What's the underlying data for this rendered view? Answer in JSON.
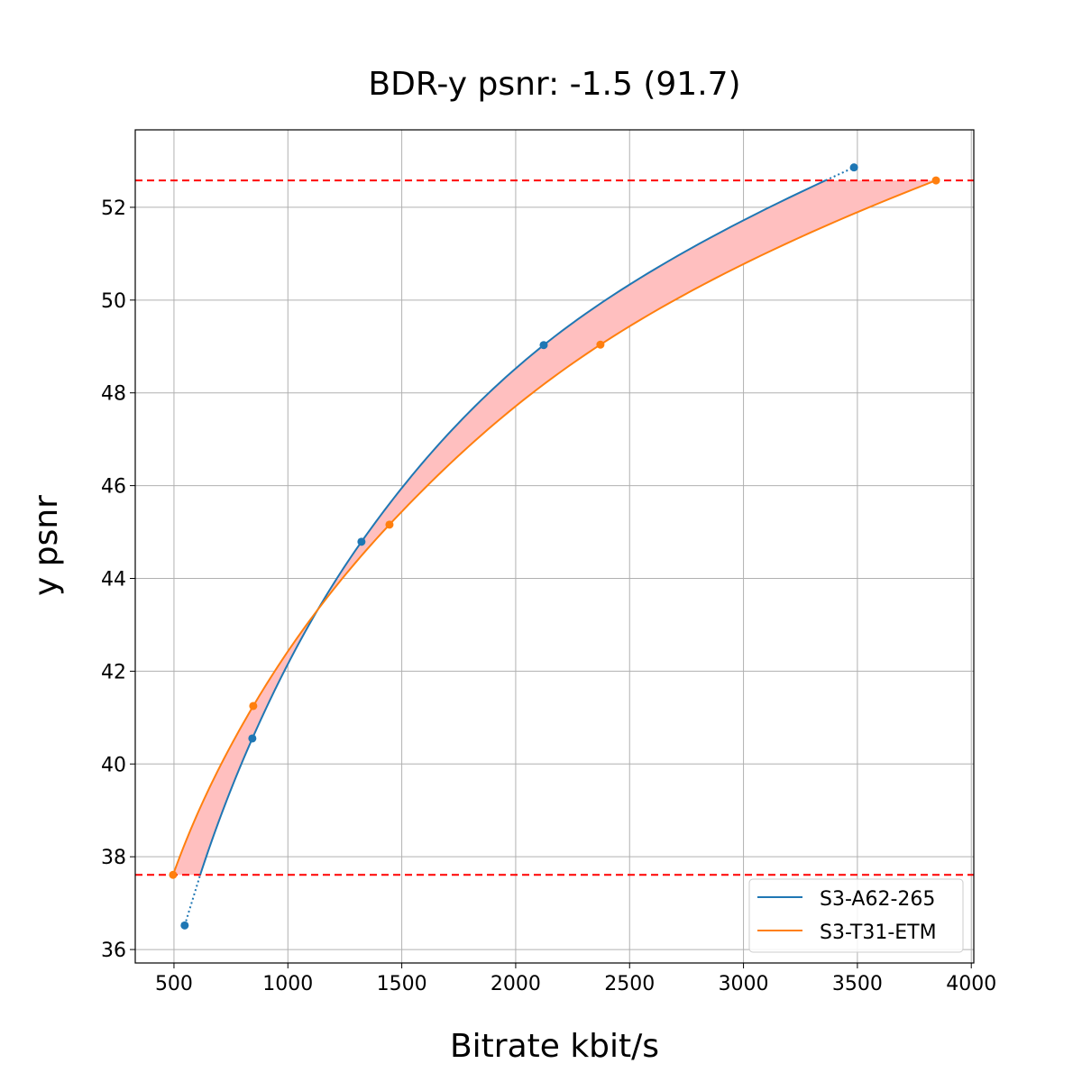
{
  "chart_data": {
    "type": "line",
    "title": "BDR-y psnr: -1.5 (91.7)",
    "xlabel": "Bitrate kbit/s",
    "ylabel": "y psnr",
    "xlim": [
      330,
      4011
    ],
    "ylim": [
      35.71,
      53.67
    ],
    "xticks": [
      500,
      1000,
      1500,
      2000,
      2500,
      3000,
      3500,
      4000
    ],
    "yticks": [
      36,
      38,
      40,
      42,
      44,
      46,
      48,
      50,
      52
    ],
    "grid": true,
    "legend_position": "bottom-right",
    "series": [
      {
        "name": "S3-A62-265",
        "color": "#1f77b4",
        "x": [
          547,
          844,
          1323,
          2123,
          3485
        ],
        "y": [
          36.52,
          40.55,
          44.79,
          49.03,
          52.86
        ]
      },
      {
        "name": "S3-T31-ETM",
        "color": "#ff7f0e",
        "x": [
          496,
          848,
          1446,
          2372,
          3845
        ],
        "y": [
          37.61,
          41.25,
          45.16,
          49.04,
          52.58
        ]
      }
    ],
    "reference_lines": {
      "color": "#ff0000",
      "y": [
        37.61,
        52.58
      ]
    },
    "fill_color": "#ffbfbf"
  }
}
